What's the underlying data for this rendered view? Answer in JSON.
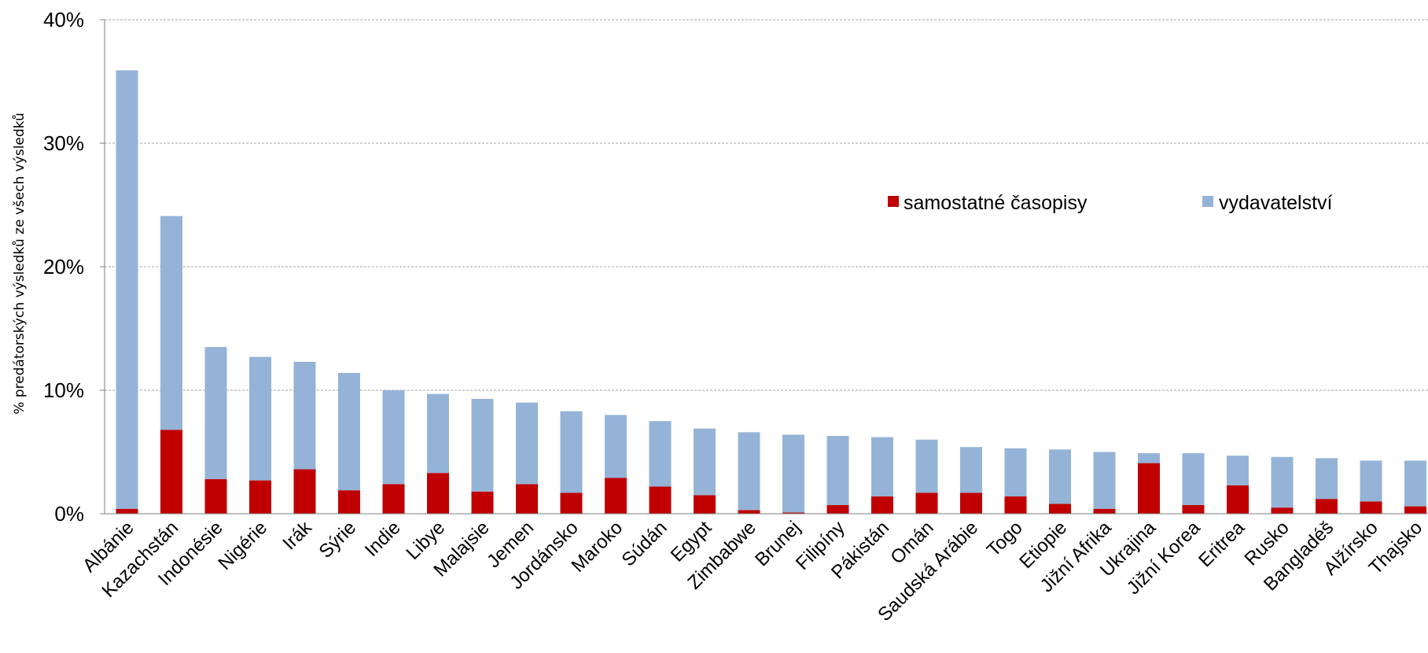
{
  "chart_data": {
    "type": "bar",
    "stacked": true,
    "ylabel": "% predátorských výsledků ze všech výsledků",
    "xlabel": "",
    "ylim": [
      0,
      40
    ],
    "yticks": [
      0,
      10,
      20,
      30,
      40
    ],
    "ytick_labels": [
      "0%",
      "10%",
      "20%",
      "30%",
      "40%"
    ],
    "grid": true,
    "legend_position": "center-right",
    "categories": [
      "Albánie",
      "Kazachstán",
      "Indonésie",
      "Nigérie",
      "Irák",
      "Sýrie",
      "Indie",
      "Libye",
      "Malajsie",
      "Jemen",
      "Jordánsko",
      "Maroko",
      "Súdán",
      "Egypt",
      "Zimbabwe",
      "Brunej",
      "Filipíny",
      "Pákistán",
      "Omán",
      "Saudská Arábie",
      "Togo",
      "Etiopie",
      "Jižní Afrika",
      "Ukrajina",
      "Jižní Korea",
      "Eritrea",
      "Rusko",
      "Bangladéš",
      "Alžírsko",
      "Thajsko"
    ],
    "series": [
      {
        "name": "samostatné časopisy",
        "color": "#c00000",
        "values": [
          0.4,
          6.8,
          2.8,
          2.7,
          3.6,
          1.9,
          2.4,
          3.3,
          1.8,
          2.4,
          1.7,
          2.9,
          2.2,
          1.5,
          0.3,
          0.1,
          0.7,
          1.4,
          1.7,
          1.7,
          1.4,
          0.8,
          0.4,
          4.1,
          0.7,
          2.3,
          0.5,
          1.2,
          1.0,
          0.6
        ]
      },
      {
        "name": "vydavatelství",
        "color": "#95b3d7",
        "values": [
          35.5,
          17.3,
          10.7,
          10.0,
          8.7,
          9.5,
          7.6,
          6.4,
          7.5,
          6.6,
          6.6,
          5.1,
          5.3,
          5.4,
          6.3,
          6.3,
          5.6,
          4.8,
          4.3,
          3.7,
          3.9,
          4.4,
          4.6,
          0.8,
          4.2,
          2.4,
          4.1,
          3.3,
          3.3,
          3.7
        ]
      }
    ]
  }
}
